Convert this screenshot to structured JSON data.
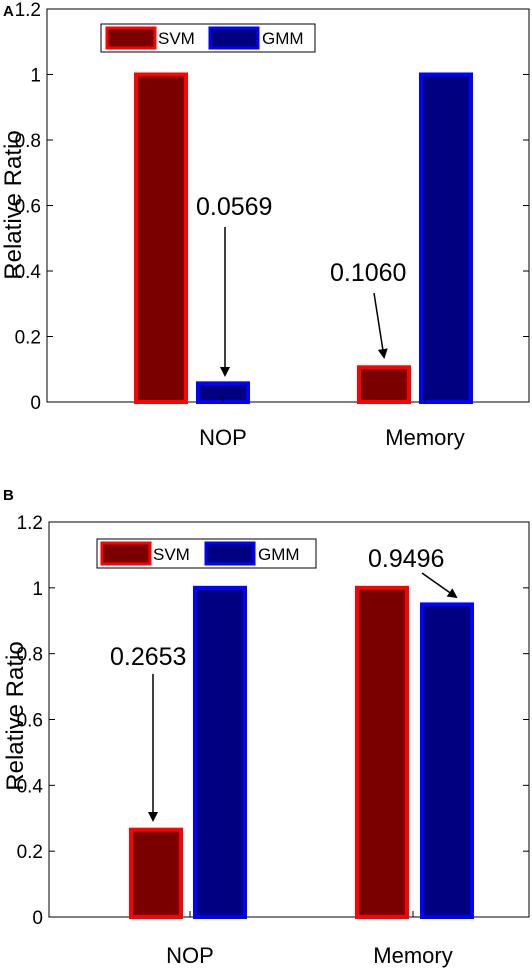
{
  "chart_data": [
    {
      "panel": "A",
      "type": "bar",
      "categories": [
        "NOP",
        "Memory"
      ],
      "series": [
        {
          "name": "SVM",
          "values": [
            1.0,
            0.106
          ],
          "fill": "#7a0000",
          "edge": "#ff0000"
        },
        {
          "name": "GMM",
          "values": [
            0.0569,
            1.0
          ],
          "fill": "#000080",
          "edge": "#0000ff"
        }
      ],
      "ylabel": "Relative Ratio",
      "ylim": [
        0,
        1.2
      ],
      "yticks": [
        "0",
        "0.2",
        "0.4",
        "0.6",
        "0.8",
        "1",
        "1.2"
      ],
      "legend": "top-left",
      "annotations": [
        {
          "text": "0.0569",
          "points_to": {
            "category": "NOP",
            "series": "GMM"
          }
        },
        {
          "text": "0.1060",
          "points_to": {
            "category": "Memory",
            "series": "SVM"
          }
        }
      ]
    },
    {
      "panel": "B",
      "type": "bar",
      "categories": [
        "NOP",
        "Memory"
      ],
      "series": [
        {
          "name": "SVM",
          "values": [
            0.2653,
            1.0
          ],
          "fill": "#7a0000",
          "edge": "#ff0000"
        },
        {
          "name": "GMM",
          "values": [
            1.0,
            0.9496
          ],
          "fill": "#000080",
          "edge": "#0000ff"
        }
      ],
      "ylabel": "Relative Ratio",
      "ylim": [
        0,
        1.2
      ],
      "yticks": [
        "0",
        "0.2",
        "0.4",
        "0.6",
        "0.8",
        "1",
        "1.2"
      ],
      "legend": "top-left",
      "annotations": [
        {
          "text": "0.2653",
          "points_to": {
            "category": "NOP",
            "series": "SVM"
          }
        },
        {
          "text": "0.9496",
          "points_to": {
            "category": "Memory",
            "series": "GMM"
          }
        }
      ]
    }
  ]
}
